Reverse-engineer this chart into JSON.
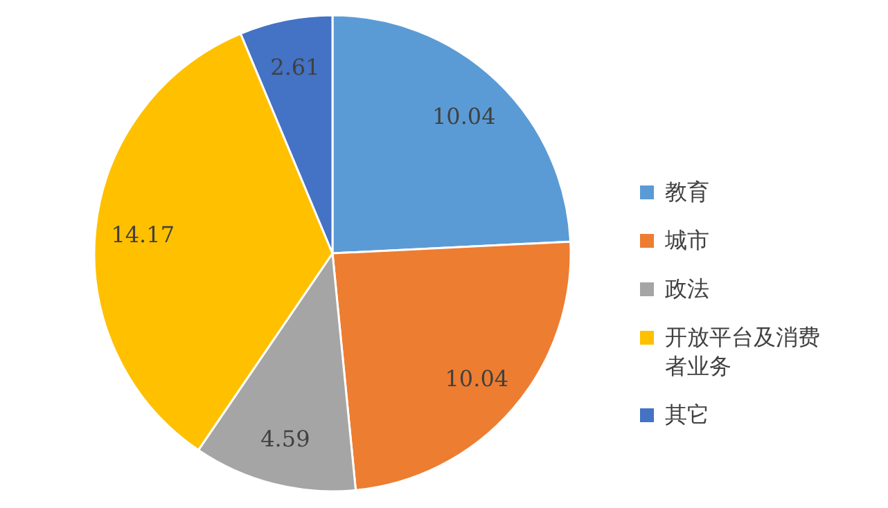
{
  "chart_data": {
    "type": "pie",
    "categories": [
      "教育",
      "城市",
      "政法",
      "开放平台及消费者业务",
      "其它"
    ],
    "values": [
      10.04,
      10.04,
      4.59,
      14.17,
      2.61
    ],
    "colors": [
      "#5b9bd5",
      "#ed7d31",
      "#a5a5a5",
      "#ffc000",
      "#4472c4"
    ],
    "data_labels": true,
    "legend": "right"
  }
}
